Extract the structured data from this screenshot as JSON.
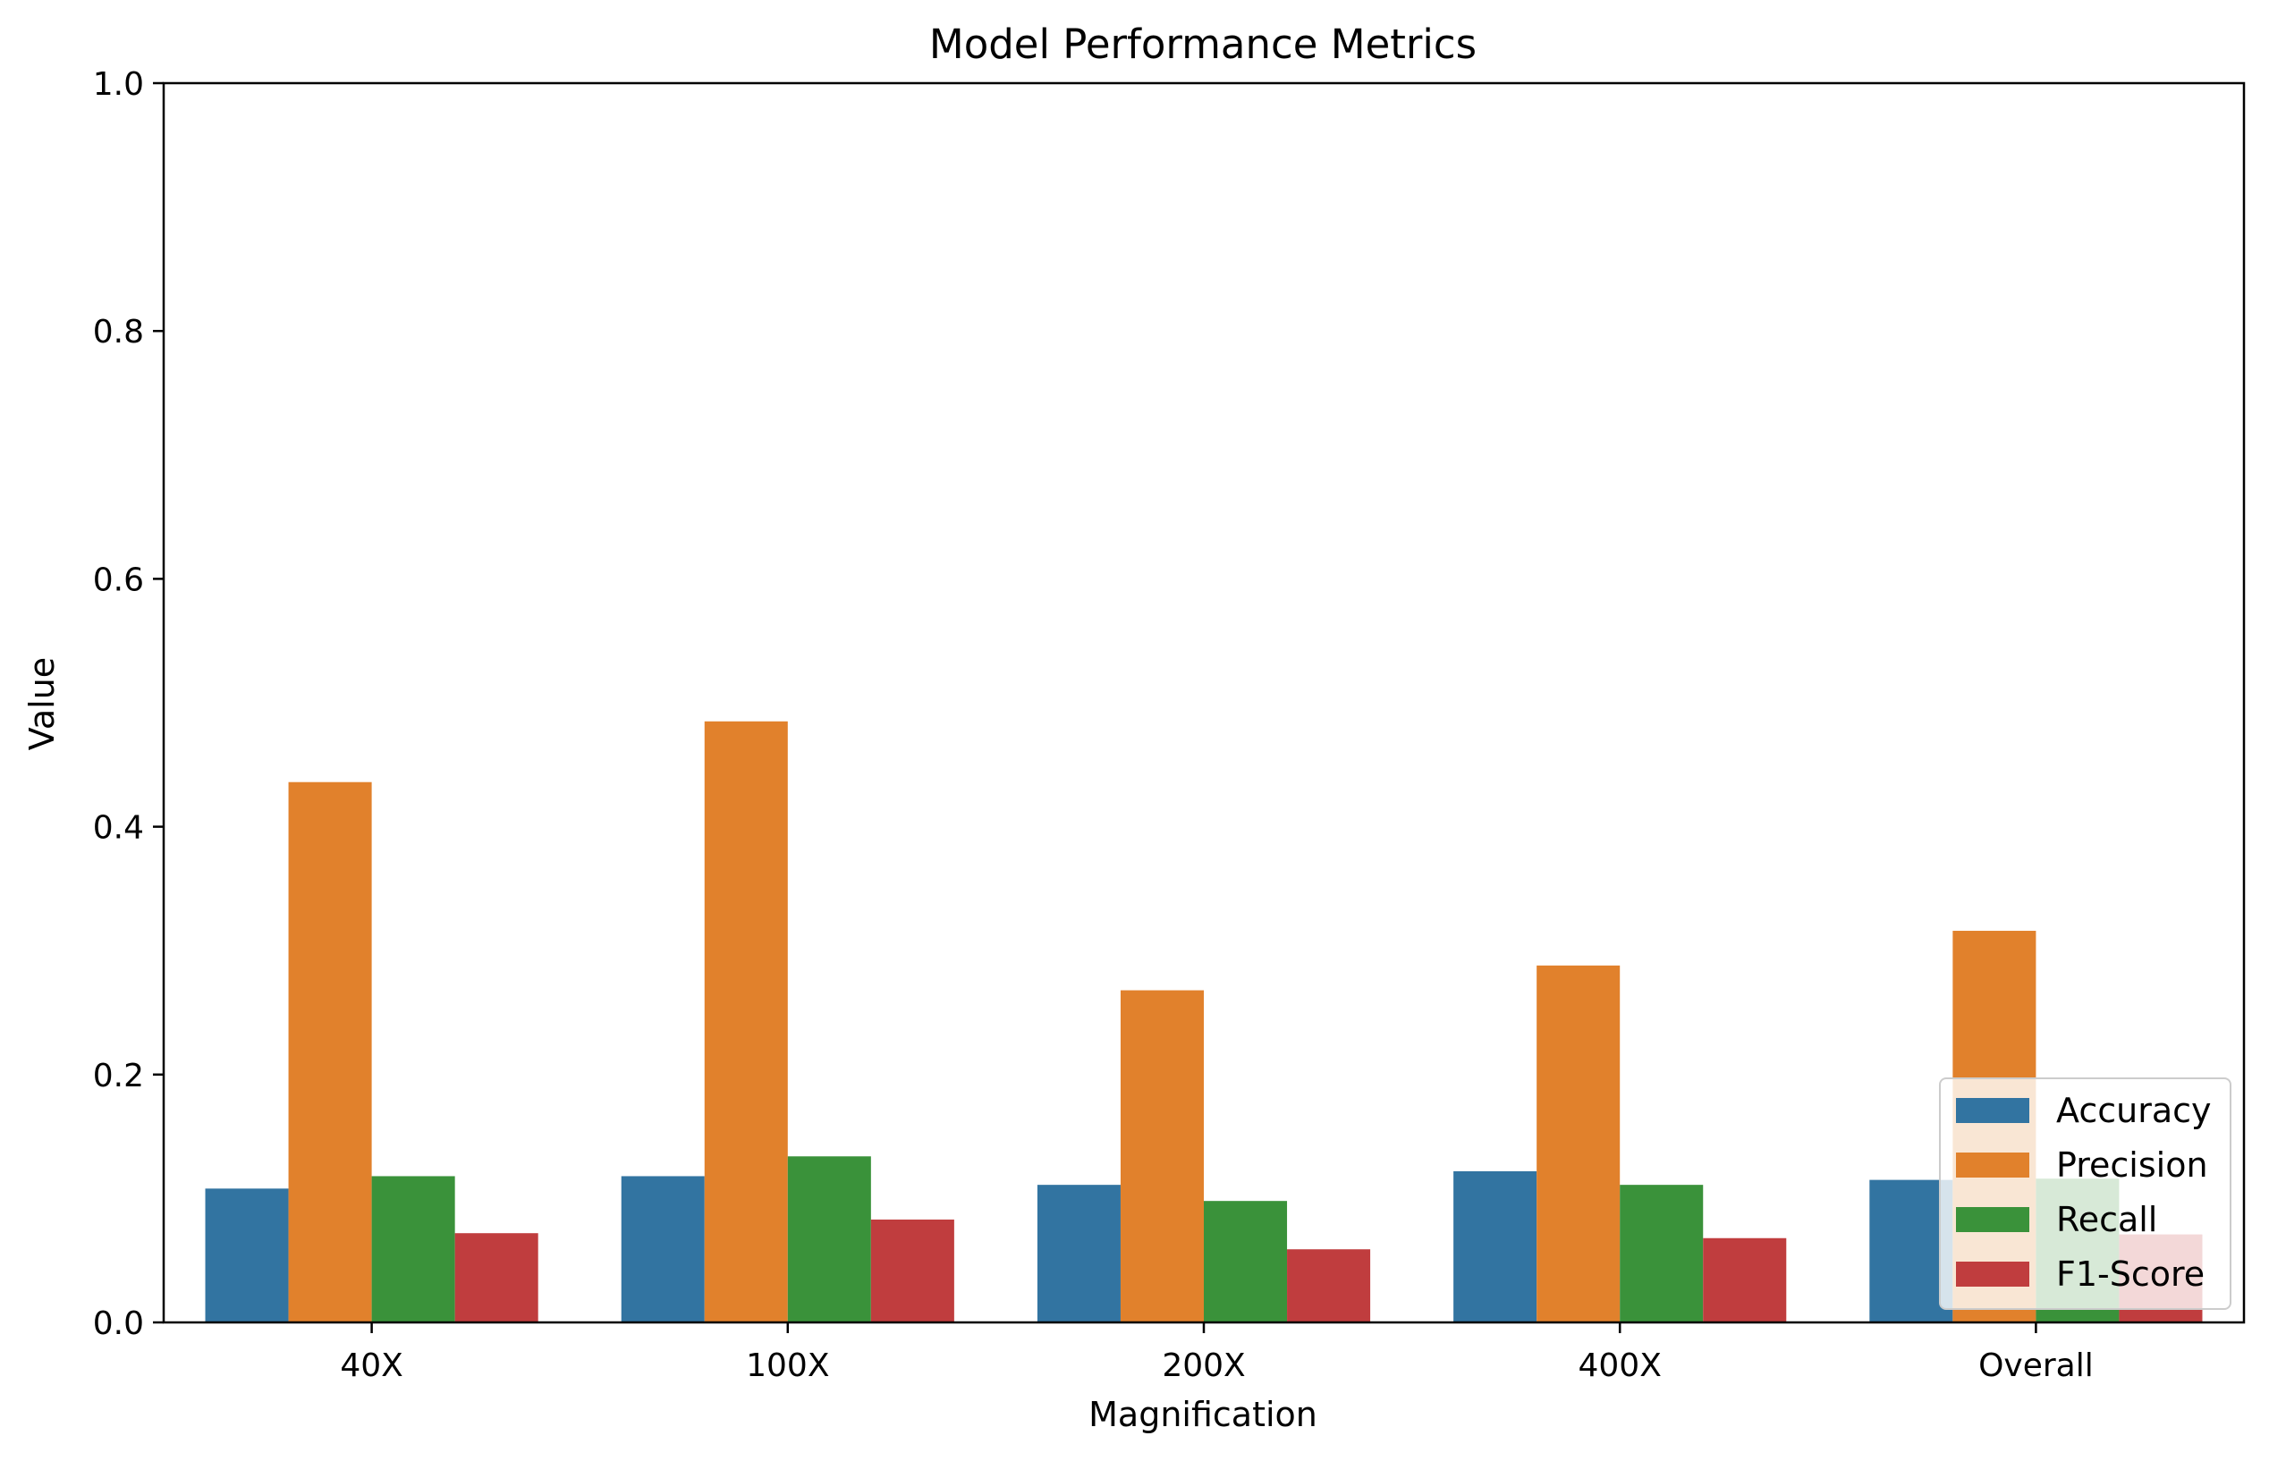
{
  "chart_data": {
    "type": "bar",
    "title": "Model Performance Metrics",
    "xlabel": "Magnification",
    "ylabel": "Value",
    "categories": [
      "40X",
      "100X",
      "200X",
      "400X",
      "Overall"
    ],
    "ylim": [
      0,
      1
    ],
    "yticks": [
      "0.0",
      "0.2",
      "0.4",
      "0.6",
      "0.8",
      "1.0"
    ],
    "grid": false,
    "legend_position": "lower right",
    "series": [
      {
        "name": "Accuracy",
        "color": "#3274a1",
        "values": [
          0.108,
          0.118,
          0.111,
          0.122,
          0.115
        ]
      },
      {
        "name": "Precision",
        "color": "#e1812c",
        "values": [
          0.436,
          0.485,
          0.268,
          0.288,
          0.316
        ]
      },
      {
        "name": "Recall",
        "color": "#3a923a",
        "values": [
          0.118,
          0.134,
          0.098,
          0.111,
          0.116
        ]
      },
      {
        "name": "F1-Score",
        "color": "#c03d3e",
        "values": [
          0.072,
          0.083,
          0.059,
          0.068,
          0.071
        ]
      }
    ]
  }
}
